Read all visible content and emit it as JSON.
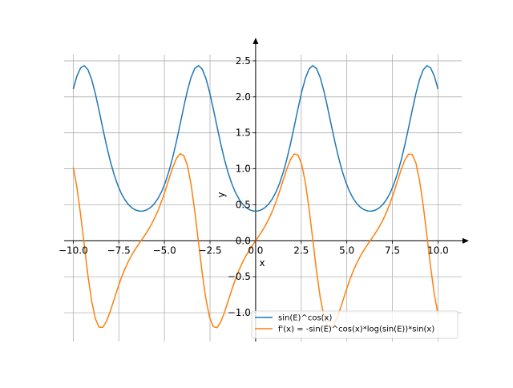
{
  "chart_data": {
    "type": "line",
    "title": "",
    "xlabel": "x",
    "ylabel": "y",
    "xlim": [
      -10.5,
      11.3
    ],
    "ylim": [
      -1.4,
      2.7
    ],
    "grid": true,
    "x_ticks": [
      -10.0,
      -7.5,
      -5.0,
      -2.5,
      0.0,
      2.5,
      5.0,
      7.5,
      10.0
    ],
    "x_tick_labels": [
      "−10.0",
      "−7.5",
      "−5.0",
      "−2.5",
      "0.0",
      "2.5",
      "5.0",
      "7.5",
      "10.0"
    ],
    "y_ticks": [
      -1.0,
      -0.5,
      0.0,
      0.5,
      1.0,
      1.5,
      2.0,
      2.5
    ],
    "y_tick_labels": [
      "−1.0",
      "−0.5",
      "0.0",
      "0.5",
      "1.0",
      "1.5",
      "2.0",
      "2.5"
    ],
    "x_domain": [
      -10,
      10
    ],
    "sample_count": 100,
    "series": [
      {
        "name": "sin(E)^cos(x)",
        "color": "#1f77b4",
        "function": "sin(e)^cos(x)"
      },
      {
        "name": "f'(x) = -sin(E)^cos(x)*log(sin(E))*sin(x)",
        "color": "#ff7f0e",
        "function": "-sin(e)^cos(x)*ln(sin(e))*sin(x)"
      }
    ],
    "legend_position": "bottom-right"
  }
}
